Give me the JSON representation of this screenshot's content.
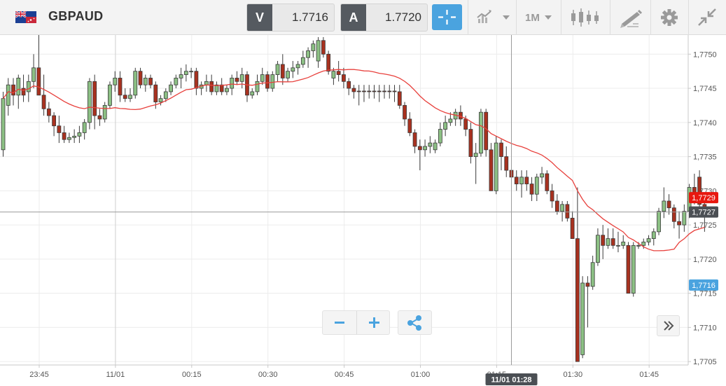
{
  "header": {
    "symbol": "GBPAUD",
    "bid_label": "V",
    "bid_value": "1.7716",
    "ask_label": "A",
    "ask_value": "1.7720",
    "timeframe": "1M"
  },
  "colors": {
    "accent": "#4aa3df",
    "bull": "#8cc084",
    "bear": "#a8311f",
    "ma_line": "#e8403c",
    "last_price_badge": "#e8180f",
    "crosshair_badge": "#4b4f54"
  },
  "icons": [
    "flag-gb-au-icon",
    "crosshair-icon",
    "chart-type-icon",
    "candlestick-icon",
    "drawing-tools-icon",
    "gear-icon",
    "collapse-icon",
    "zoom-out-icon",
    "zoom-in-icon",
    "share-icon",
    "fast-forward-icon"
  ],
  "chart_data": {
    "type": "candlestick",
    "title": "",
    "xlabel": "",
    "ylabel": "",
    "ylim": [
      1.77045,
      1.77528
    ],
    "x_ticks": [
      "23:45",
      "11/01",
      "00:15",
      "00:30",
      "00:45",
      "01:00",
      "01:15",
      "01:30",
      "01:45"
    ],
    "y_ticks": [
      "1,7750",
      "1,7745",
      "1,7740",
      "1,7735",
      "1,7730",
      "1,7725",
      "1,7720",
      "1,7715",
      "1,7710",
      "1,7705"
    ],
    "ma_label": "1,7729",
    "crosshair_price_label": "1,7727",
    "crosshair_time_label": "11/01 01:28",
    "crosshair_price": 1.77269,
    "marker_label": "1,7716",
    "marker_price": 1.77162,
    "grid": true,
    "candles_ohlc": [
      [
        1.7736,
        1.77445,
        1.7735,
        1.77435
      ],
      [
        1.77425,
        1.77465,
        1.7741,
        1.77455
      ],
      [
        1.77455,
        1.77465,
        1.77425,
        1.7744
      ],
      [
        1.7744,
        1.7747,
        1.7742,
        1.77465
      ],
      [
        1.7745,
        1.7747,
        1.7743,
        1.7744
      ],
      [
        1.77445,
        1.7747,
        1.7743,
        1.7746
      ],
      [
        1.7746,
        1.775,
        1.7745,
        1.7748
      ],
      [
        1.7748,
        1.7754,
        1.7747,
        1.7744
      ],
      [
        1.7744,
        1.7747,
        1.7741,
        1.7742
      ],
      [
        1.7742,
        1.7743,
        1.774,
        1.7741
      ],
      [
        1.7741,
        1.77415,
        1.7738,
        1.77395
      ],
      [
        1.77395,
        1.7741,
        1.7737,
        1.77385
      ],
      [
        1.77385,
        1.77395,
        1.7737,
        1.77375
      ],
      [
        1.77375,
        1.77385,
        1.7737,
        1.77378
      ],
      [
        1.77378,
        1.7739,
        1.7737,
        1.7738
      ],
      [
        1.7738,
        1.77395,
        1.7737,
        1.77385
      ],
      [
        1.77385,
        1.77405,
        1.77375,
        1.774
      ],
      [
        1.774,
        1.77465,
        1.7739,
        1.7746
      ],
      [
        1.7746,
        1.7747,
        1.7739,
        1.7741
      ],
      [
        1.7741,
        1.7742,
        1.77395,
        1.77405
      ],
      [
        1.77405,
        1.7743,
        1.774,
        1.77425
      ],
      [
        1.77425,
        1.7746,
        1.7742,
        1.77455
      ],
      [
        1.77455,
        1.77475,
        1.77445,
        1.77465
      ],
      [
        1.77465,
        1.77475,
        1.7743,
        1.7744
      ],
      [
        1.7744,
        1.7745,
        1.7743,
        1.77435
      ],
      [
        1.77435,
        1.7745,
        1.7743,
        1.7744
      ],
      [
        1.7744,
        1.7748,
        1.77435,
        1.77475
      ],
      [
        1.77475,
        1.7748,
        1.7745,
        1.77455
      ],
      [
        1.77455,
        1.7747,
        1.77445,
        1.77465
      ],
      [
        1.77465,
        1.7747,
        1.7745,
        1.77455
      ],
      [
        1.77455,
        1.7746,
        1.7742,
        1.7743
      ],
      [
        1.7743,
        1.7744,
        1.77425,
        1.77435
      ],
      [
        1.77435,
        1.7745,
        1.7743,
        1.77445
      ],
      [
        1.77445,
        1.7746,
        1.7744,
        1.77455
      ],
      [
        1.77455,
        1.7747,
        1.7745,
        1.77465
      ],
      [
        1.77465,
        1.7748,
        1.7745,
        1.7747
      ],
      [
        1.7747,
        1.77485,
        1.7746,
        1.77475
      ],
      [
        1.77475,
        1.7748,
        1.77465,
        1.77475
      ],
      [
        1.77475,
        1.7748,
        1.7744,
        1.7745
      ],
      [
        1.7745,
        1.7746,
        1.7744,
        1.77455
      ],
      [
        1.77455,
        1.7747,
        1.77445,
        1.7746
      ],
      [
        1.7746,
        1.7747,
        1.7744,
        1.77445
      ],
      [
        1.77445,
        1.7746,
        1.7744,
        1.77455
      ],
      [
        1.77455,
        1.77465,
        1.7744,
        1.77445
      ],
      [
        1.77445,
        1.77455,
        1.7744,
        1.7745
      ],
      [
        1.7745,
        1.7747,
        1.7744,
        1.77465
      ],
      [
        1.77465,
        1.77475,
        1.77455,
        1.7746
      ],
      [
        1.7746,
        1.7748,
        1.7745,
        1.7747
      ],
      [
        1.7747,
        1.77475,
        1.7743,
        1.7744
      ],
      [
        1.7744,
        1.7745,
        1.77435,
        1.77445
      ],
      [
        1.77445,
        1.7747,
        1.7744,
        1.7746
      ],
      [
        1.7746,
        1.7748,
        1.77455,
        1.7747
      ],
      [
        1.7747,
        1.77475,
        1.77445,
        1.7745
      ],
      [
        1.7745,
        1.77475,
        1.77445,
        1.7747
      ],
      [
        1.7747,
        1.7749,
        1.7746,
        1.77485
      ],
      [
        1.77485,
        1.775,
        1.77455,
        1.77465
      ],
      [
        1.77465,
        1.7748,
        1.7746,
        1.77475
      ],
      [
        1.77475,
        1.7749,
        1.77465,
        1.7748
      ],
      [
        1.7748,
        1.7749,
        1.7747,
        1.77485
      ],
      [
        1.77485,
        1.77505,
        1.7748,
        1.77495
      ],
      [
        1.77495,
        1.7751,
        1.7748,
        1.77505
      ],
      [
        1.77505,
        1.7752,
        1.77495,
        1.77515
      ],
      [
        1.7749,
        1.77525,
        1.7748,
        1.7752
      ],
      [
        1.7752,
        1.77525,
        1.77495,
        1.775
      ],
      [
        1.775,
        1.77505,
        1.7747,
        1.77475
      ],
      [
        1.77465,
        1.7748,
        1.77455,
        1.77475
      ],
      [
        1.77475,
        1.7749,
        1.7746,
        1.7747
      ],
      [
        1.7747,
        1.7748,
        1.7745,
        1.7746
      ],
      [
        1.7746,
        1.77465,
        1.7744,
        1.7745
      ],
      [
        1.7745,
        1.77455,
        1.77435,
        1.77445
      ],
      [
        1.77446,
        1.77455,
        1.77425,
        1.77445
      ],
      [
        1.77446,
        1.77455,
        1.7743,
        1.77445
      ],
      [
        1.77446,
        1.77455,
        1.77435,
        1.77445
      ],
      [
        1.77446,
        1.77455,
        1.77435,
        1.77445
      ],
      [
        1.77446,
        1.77455,
        1.7743,
        1.77445
      ],
      [
        1.77446,
        1.77455,
        1.77435,
        1.77445
      ],
      [
        1.77446,
        1.77455,
        1.77435,
        1.77445
      ],
      [
        1.77446,
        1.77455,
        1.7743,
        1.77445
      ],
      [
        1.77445,
        1.77455,
        1.7742,
        1.77425
      ],
      [
        1.77425,
        1.7743,
        1.77395,
        1.77405
      ],
      [
        1.77405,
        1.77415,
        1.7738,
        1.77385
      ],
      [
        1.77385,
        1.7739,
        1.77355,
        1.77365
      ],
      [
        1.77365,
        1.77375,
        1.7733,
        1.7736
      ],
      [
        1.7736,
        1.77375,
        1.7735,
        1.77365
      ],
      [
        1.77365,
        1.7738,
        1.77355,
        1.7737
      ],
      [
        1.7736,
        1.77375,
        1.77355,
        1.7737
      ],
      [
        1.7737,
        1.774,
        1.77365,
        1.7739
      ],
      [
        1.7739,
        1.7741,
        1.7738,
        1.774
      ],
      [
        1.774,
        1.77415,
        1.77395,
        1.77405
      ],
      [
        1.77405,
        1.7742,
        1.77395,
        1.77415
      ],
      [
        1.77415,
        1.77425,
        1.77395,
        1.77405
      ],
      [
        1.77405,
        1.7741,
        1.7738,
        1.7739
      ],
      [
        1.7739,
        1.774,
        1.7734,
        1.7735
      ],
      [
        1.7735,
        1.7737,
        1.7731,
        1.77355
      ],
      [
        1.77355,
        1.7742,
        1.7735,
        1.77415
      ],
      [
        1.77415,
        1.7742,
        1.7735,
        1.7736
      ],
      [
        1.7736,
        1.7737,
        1.773,
        1.773
      ],
      [
        1.773,
        1.7738,
        1.77295,
        1.7737
      ],
      [
        1.7737,
        1.77375,
        1.7733,
        1.7735
      ],
      [
        1.7735,
        1.77365,
        1.7732,
        1.7733
      ],
      [
        1.7733,
        1.77345,
        1.7731,
        1.7732
      ],
      [
        1.7732,
        1.7733,
        1.773,
        1.7731
      ],
      [
        1.7731,
        1.7733,
        1.7729,
        1.7732
      ],
      [
        1.7732,
        1.7733,
        1.773,
        1.7731
      ],
      [
        1.7731,
        1.7732,
        1.77285,
        1.77295
      ],
      [
        1.77295,
        1.77325,
        1.77285,
        1.7732
      ],
      [
        1.7732,
        1.77335,
        1.7731,
        1.77325
      ],
      [
        1.77325,
        1.7733,
        1.77295,
        1.773
      ],
      [
        1.773,
        1.7731,
        1.77275,
        1.77285
      ],
      [
        1.77285,
        1.77295,
        1.77265,
        1.7727
      ],
      [
        1.7727,
        1.77285,
        1.77255,
        1.7728
      ],
      [
        1.7728,
        1.77285,
        1.77255,
        1.7726
      ],
      [
        1.7726,
        1.7727,
        1.7723,
        1.7723
      ],
      [
        1.7723,
        1.77305,
        1.7705,
        1.7705
      ],
      [
        1.7706,
        1.77175,
        1.77055,
        1.77165
      ],
      [
        1.77165,
        1.77175,
        1.771,
        1.7716
      ],
      [
        1.7716,
        1.77205,
        1.77155,
        1.77195
      ],
      [
        1.77195,
        1.77245,
        1.7719,
        1.77235
      ],
      [
        1.77235,
        1.7725,
        1.772,
        1.7722
      ],
      [
        1.7722,
        1.77245,
        1.77215,
        1.7723
      ],
      [
        1.7723,
        1.77245,
        1.77215,
        1.7722
      ],
      [
        1.7722,
        1.7724,
        1.7721,
        1.7722
      ],
      [
        1.7722,
        1.77235,
        1.77215,
        1.77225
      ],
      [
        1.7722,
        1.77225,
        1.7715,
        1.7715
      ],
      [
        1.7715,
        1.77225,
        1.77145,
        1.7722
      ],
      [
        1.7722,
        1.77225,
        1.77215,
        1.7722
      ],
      [
        1.7722,
        1.7723,
        1.77215,
        1.77225
      ],
      [
        1.77225,
        1.77235,
        1.7722,
        1.7723
      ],
      [
        1.7723,
        1.77245,
        1.7722,
        1.7724
      ],
      [
        1.7724,
        1.77275,
        1.77235,
        1.7727
      ],
      [
        1.7727,
        1.77305,
        1.7726,
        1.77285
      ],
      [
        1.77285,
        1.77295,
        1.77265,
        1.77275
      ],
      [
        1.77275,
        1.7728,
        1.77245,
        1.77255
      ],
      [
        1.77255,
        1.7727,
        1.7723,
        1.7725
      ],
      [
        1.7725,
        1.7728,
        1.7724,
        1.7727
      ],
      [
        1.7727,
        1.7731,
        1.7726,
        1.77305
      ],
      [
        1.77305,
        1.77325,
        1.7728,
        1.77295
      ],
      [
        1.7732,
        1.7733,
        1.7727,
        1.7728
      ],
      [
        1.7728,
        1.7729,
        1.7724,
        1.77265
      ]
    ]
  }
}
